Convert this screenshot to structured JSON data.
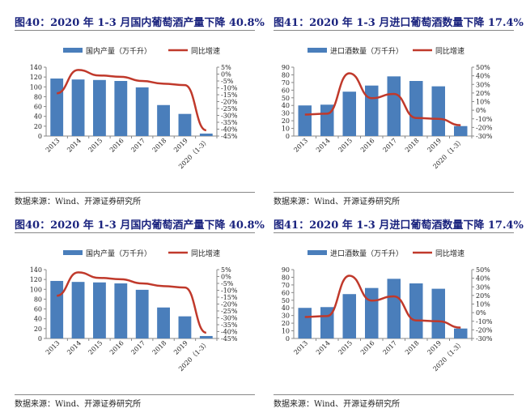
{
  "source": "数据来源：Wind、开源证券研究所",
  "chart_data": [
    {
      "type": "bar+line",
      "title": "图40：2020 年 1-3 月国内葡萄酒产量下降 40.8%",
      "categories": [
        "2013",
        "2014",
        "2015",
        "2016",
        "2017",
        "2018",
        "2019",
        "2020（1-3）"
      ],
      "series": [
        {
          "name": "国内产量（万千升）",
          "type": "bar",
          "axis": "left",
          "color": "#4a7ebb",
          "values": [
            117,
            115,
            114,
            112,
            99,
            63,
            45,
            5
          ]
        },
        {
          "name": "同比增速",
          "type": "line",
          "axis": "right",
          "color": "#c0392b",
          "values": [
            -14,
            3,
            -1,
            -2,
            -5,
            -7,
            -8,
            -40.8
          ]
        }
      ],
      "ylim": [
        0,
        140
      ],
      "yticks": [
        0,
        20,
        40,
        60,
        80,
        100,
        120,
        140
      ],
      "y2lim": [
        -45,
        5
      ],
      "y2ticks": [
        -45,
        -40,
        -35,
        -30,
        -25,
        -20,
        -15,
        -10,
        -5,
        0,
        5
      ],
      "legend": "top",
      "grid": false
    },
    {
      "type": "bar+line",
      "title": "图41：2020 年 1-3 月进口葡萄酒数量下降 17.4%",
      "categories": [
        "2013",
        "2014",
        "2015",
        "2016",
        "2017",
        "2018",
        "2019",
        "2020（1-3）"
      ],
      "series": [
        {
          "name": "进口酒数量（万千升）",
          "type": "bar",
          "axis": "left",
          "color": "#4a7ebb",
          "values": [
            40,
            41,
            58,
            66,
            78,
            72,
            65,
            13
          ]
        },
        {
          "name": "同比增速",
          "type": "line",
          "axis": "right",
          "color": "#c0392b",
          "values": [
            -5,
            -4,
            43,
            14,
            19,
            -9,
            -10,
            -17.4
          ]
        }
      ],
      "ylim": [
        0,
        90
      ],
      "yticks": [
        0,
        10,
        20,
        30,
        40,
        50,
        60,
        70,
        80,
        90
      ],
      "y2lim": [
        -30,
        50
      ],
      "y2ticks": [
        -30,
        -20,
        -10,
        0,
        10,
        20,
        30,
        40,
        50
      ],
      "legend": "top",
      "grid": false
    }
  ]
}
